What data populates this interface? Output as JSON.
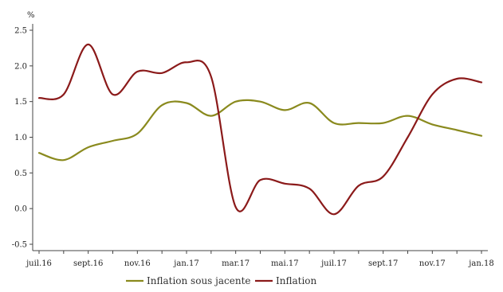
{
  "chart_data": {
    "type": "line",
    "unit_label": "%",
    "x_tick_labels": [
      "juil.16",
      "sept.16",
      "nov.16",
      "jan.17",
      "mar.17",
      "mai.17",
      "juil.17",
      "sept.17",
      "nov.17",
      "jan.18"
    ],
    "x_range": [
      0,
      18
    ],
    "x_tick_positions": [
      0,
      2,
      4,
      6,
      8,
      10,
      12,
      14,
      16,
      18
    ],
    "y_ticks": [
      "-0.5",
      "0.0",
      "0.5",
      "1.0",
      "1.5",
      "2.0",
      "2.5"
    ],
    "y_tick_values": [
      -0.5,
      0.0,
      0.5,
      1.0,
      1.5,
      2.0,
      2.5
    ],
    "ylim": [
      -0.5,
      2.5
    ],
    "grid": false,
    "legend_position": "bottom",
    "series": [
      {
        "name": "Inflation sous jacente",
        "color": "#8a8a1e",
        "x": [
          0,
          1,
          2,
          3,
          4,
          5,
          6,
          7,
          8,
          9,
          10,
          11,
          12,
          13,
          14,
          15,
          16,
          17,
          18
        ],
        "values": [
          0.78,
          0.68,
          0.86,
          0.95,
          1.05,
          1.45,
          1.48,
          1.3,
          1.5,
          1.5,
          1.38,
          1.48,
          1.2,
          1.2,
          1.2,
          1.3,
          1.18,
          1.1,
          1.02
        ]
      },
      {
        "name": "Inflation",
        "color": "#8b1a1a",
        "x": [
          0,
          1,
          2,
          3,
          4,
          5,
          6,
          7,
          8,
          9,
          10,
          11,
          12,
          13,
          14,
          15,
          16,
          17,
          18
        ],
        "values": [
          1.55,
          1.6,
          2.3,
          1.6,
          1.92,
          1.9,
          2.05,
          1.85,
          0.02,
          0.4,
          0.35,
          0.28,
          -0.08,
          0.32,
          0.45,
          1.0,
          1.6,
          1.82,
          1.77
        ]
      }
    ]
  }
}
